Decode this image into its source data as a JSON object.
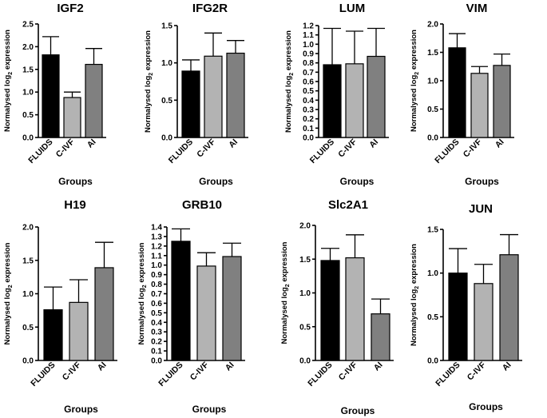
{
  "colors": {
    "FLUIDS": "#000000",
    "C-IVF": "#b3b3b3",
    "AI": "#808080"
  },
  "chart_data": [
    {
      "type": "bar",
      "title": "IGF2",
      "xlabel": "Groups",
      "ylabel": "Normalysed log2 expression",
      "categories": [
        "FLUIDS",
        "C-IVF",
        "AI"
      ],
      "values": [
        1.82,
        0.88,
        1.61
      ],
      "errors": [
        0.4,
        0.12,
        0.35
      ],
      "ylim": [
        0,
        2.5
      ],
      "ticks": [
        0.0,
        0.5,
        1.0,
        1.5,
        2.0,
        2.5
      ]
    },
    {
      "type": "bar",
      "title": "IFG2R",
      "xlabel": "Groups",
      "ylabel": "Normalysed log2 expression",
      "categories": [
        "FLUIDS",
        "C-IVF",
        "AI"
      ],
      "values": [
        0.89,
        1.09,
        1.13
      ],
      "errors": [
        0.15,
        0.31,
        0.17
      ],
      "ylim": [
        0,
        1.5
      ],
      "ticks": [
        0.0,
        0.5,
        1.0,
        1.5
      ]
    },
    {
      "type": "bar",
      "title": "LUM",
      "xlabel": "Groups",
      "ylabel": "Normalysed log2 expression",
      "categories": [
        "FLUIDS",
        "C-IVF",
        "AI"
      ],
      "values": [
        0.78,
        0.79,
        0.87
      ],
      "errors": [
        0.39,
        0.35,
        0.3
      ],
      "ylim": [
        0,
        1.2
      ],
      "ticks": [
        0.0,
        0.1,
        0.2,
        0.3,
        0.4,
        0.5,
        0.6,
        0.7,
        0.8,
        0.9,
        1.0,
        1.1,
        1.2
      ]
    },
    {
      "type": "bar",
      "title": "VIM",
      "xlabel": "Groups",
      "ylabel": "Normalysed log2 expression",
      "categories": [
        "FLUIDS",
        "C-IVF",
        "AI"
      ],
      "values": [
        1.58,
        1.13,
        1.27
      ],
      "errors": [
        0.25,
        0.12,
        0.2
      ],
      "ylim": [
        0,
        2.0
      ],
      "ticks": [
        0.0,
        0.5,
        1.0,
        1.5,
        2.0
      ]
    },
    {
      "type": "bar",
      "title": "H19",
      "xlabel": "Groups",
      "ylabel": "Normalysed log2 expression",
      "categories": [
        "FLUIDS",
        "C-IVF",
        "AI"
      ],
      "values": [
        0.76,
        0.87,
        1.39
      ],
      "errors": [
        0.34,
        0.34,
        0.38
      ],
      "ylim": [
        0,
        2.0
      ],
      "ticks": [
        0.0,
        0.5,
        1.0,
        1.5,
        2.0
      ]
    },
    {
      "type": "bar",
      "title": "GRB10",
      "xlabel": "Groups",
      "ylabel": "Normalysed log2 expression",
      "categories": [
        "FLUIDS",
        "C-IVF",
        "AI"
      ],
      "values": [
        1.25,
        0.99,
        1.09
      ],
      "errors": [
        0.13,
        0.14,
        0.14
      ],
      "ylim": [
        0,
        1.4
      ],
      "ticks": [
        0.0,
        0.1,
        0.2,
        0.3,
        0.4,
        0.5,
        0.6,
        0.7,
        0.8,
        0.9,
        1.0,
        1.1,
        1.2,
        1.3,
        1.4
      ]
    },
    {
      "type": "bar",
      "title": "Slc2A1",
      "xlabel": "Groups",
      "ylabel": "Normalysed log2 expression",
      "categories": [
        "FLUIDS",
        "C-IVF",
        "AI"
      ],
      "values": [
        1.48,
        1.52,
        0.69
      ],
      "errors": [
        0.18,
        0.34,
        0.22
      ],
      "ylim": [
        0,
        2.0
      ],
      "ticks": [
        0.0,
        0.5,
        1.0,
        1.5,
        2.0
      ]
    },
    {
      "type": "bar",
      "title": "JUN",
      "xlabel": "Groups",
      "ylabel": "Normalysed log2 expression",
      "categories": [
        "FLUIDS",
        "C-IVF",
        "AI"
      ],
      "values": [
        1.0,
        0.88,
        1.21
      ],
      "errors": [
        0.28,
        0.22,
        0.23
      ],
      "ylim": [
        0,
        1.5
      ],
      "ticks": [
        0.0,
        0.5,
        1.0,
        1.5
      ]
    }
  ]
}
